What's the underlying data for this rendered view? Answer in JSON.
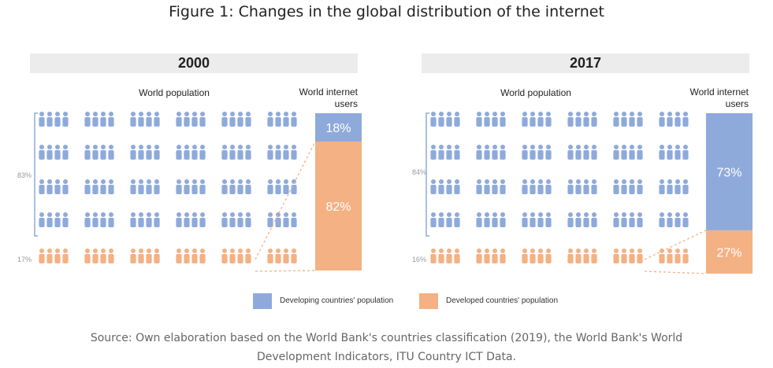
{
  "title": "Figure 1: Changes in the global distribution of the internet",
  "labels": {
    "world_population": "World population",
    "world_internet_users_line1": "World internet",
    "world_internet_users_line2": "users"
  },
  "colors": {
    "developing": "#8eaadb",
    "developed": "#f4b183",
    "bracket": "#8eaadb",
    "connector": "#f4b183"
  },
  "legend": {
    "developing": "Developing countries' population",
    "developed": "Developed countries' population"
  },
  "source": {
    "line1": "Source: Own elaboration based on the World Bank's countries classification (2019), the World Bank's World",
    "line2": "Development Indicators, ITU Country ICT Data."
  },
  "chart_data": [
    {
      "type": "stacked-bar-with-pictogram",
      "title": "2000",
      "population_share": {
        "developing_label": "83%",
        "developed_label": "17%",
        "developing": 83,
        "developed": 17
      },
      "internet_users_share": {
        "developing_label": "18%",
        "developed_label": "82%",
        "developing": 18,
        "developed": 82
      },
      "series": [
        {
          "name": "Developing countries' population",
          "population": 83,
          "internet_users": 18
        },
        {
          "name": "Developed countries' population",
          "population": 17,
          "internet_users": 82
        }
      ]
    },
    {
      "type": "stacked-bar-with-pictogram",
      "title": "2017",
      "population_share": {
        "developing_label": "84%",
        "developed_label": "16%",
        "developing": 84,
        "developed": 16
      },
      "internet_users_share": {
        "developing_label": "73%",
        "developed_label": "27%",
        "developing": 73,
        "developed": 27
      },
      "series": [
        {
          "name": "Developing countries' population",
          "population": 84,
          "internet_users": 73
        },
        {
          "name": "Developed countries' population",
          "population": 16,
          "internet_users": 27
        }
      ]
    }
  ]
}
